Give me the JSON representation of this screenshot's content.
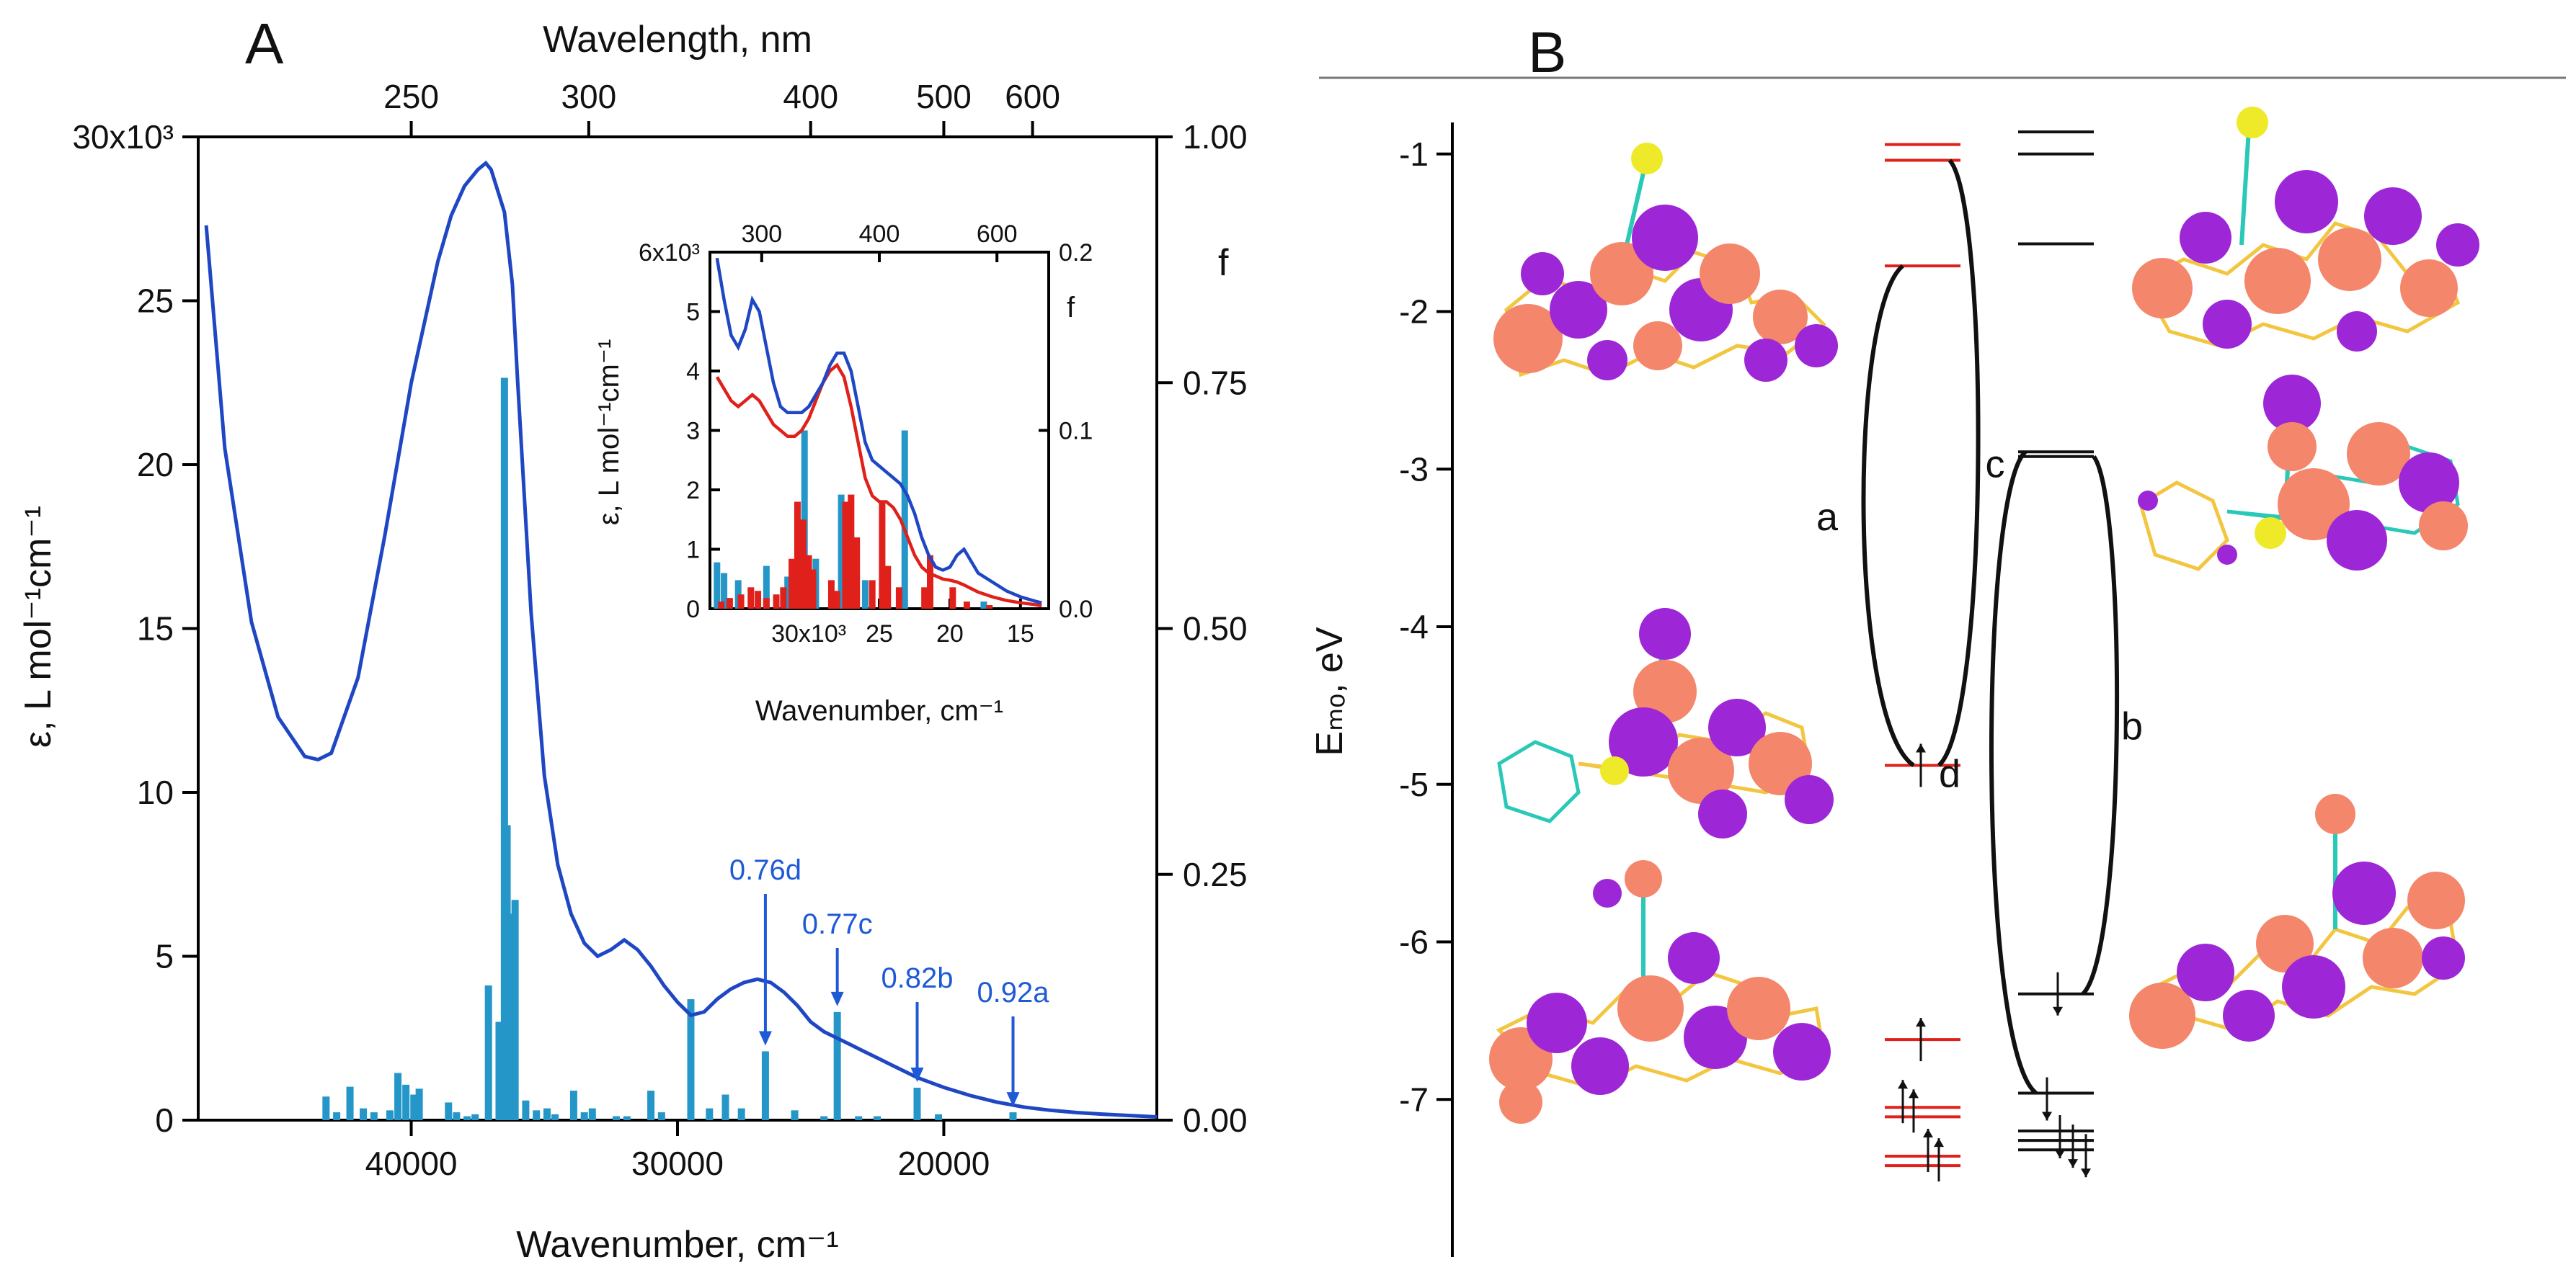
{
  "panels": {
    "a": "A",
    "b": "B"
  },
  "chart_data": [
    {
      "type": "line",
      "panel": "A",
      "xlabel": "Wavenumber, cm⁻¹",
      "x2label": "Wavelength, nm",
      "ylabel": "ε, L mol⁻¹cm⁻¹",
      "y2label": "f",
      "xlim": [
        48000,
        12000
      ],
      "ylim": [
        0,
        30000
      ],
      "y2lim": [
        0,
        1
      ],
      "x_ticks": [
        40000,
        30000,
        20000
      ],
      "x_tick_labels": [
        "40000",
        "30000",
        "20000"
      ],
      "x2_ticks_nm": [
        250,
        300,
        400,
        500,
        600
      ],
      "y_ticks": [
        0,
        5000,
        10000,
        15000,
        20000,
        25000,
        30000
      ],
      "y_tick_labels": [
        "0",
        "5",
        "10",
        "15",
        "20",
        "25",
        "30x10³"
      ],
      "y2_ticks": [
        0,
        0.25,
        0.5,
        0.75,
        1.0
      ],
      "y2_tick_labels": [
        "0.00",
        "0.25",
        "0.50",
        "0.75",
        "1.00"
      ],
      "colors": {
        "spectrum": "#1f47c4",
        "sticks": "#2596c8",
        "annotation": "#1e5ad6"
      },
      "series": [
        {
          "kind": "curve",
          "x": [
            47700,
            47000,
            46000,
            45000,
            44000,
            43500,
            43000,
            42000,
            41000,
            40000,
            39000,
            38500,
            38000,
            37500,
            37200,
            37000,
            36500,
            36200,
            36000,
            35500,
            35000,
            34500,
            34000,
            33500,
            33000,
            32500,
            32000,
            31500,
            31000,
            30500,
            30000,
            29500,
            29000,
            28500,
            28000,
            27500,
            27000,
            26500,
            26000,
            25500,
            25000,
            24500,
            24000,
            23500,
            23000,
            22500,
            22000,
            21500,
            21000,
            20500,
            20000,
            19000,
            18000,
            17000,
            16000,
            15000,
            14000,
            13000,
            12000
          ],
          "y": [
            27300,
            20500,
            15200,
            12300,
            11100,
            11000,
            11200,
            13500,
            17800,
            22500,
            26200,
            27600,
            28500,
            29000,
            29200,
            29000,
            27700,
            25500,
            22500,
            15500,
            10500,
            7800,
            6300,
            5400,
            5000,
            5200,
            5500,
            5200,
            4700,
            4100,
            3600,
            3200,
            3300,
            3700,
            4000,
            4200,
            4300,
            4200,
            3900,
            3500,
            3000,
            2700,
            2500,
            2300,
            2100,
            1900,
            1700,
            1500,
            1300,
            1150,
            1000,
            750,
            550,
            400,
            300,
            230,
            180,
            140,
            100
          ]
        },
        {
          "kind": "sticks",
          "name": "f",
          "x": [
            43200,
            42800,
            42300,
            41800,
            41400,
            40800,
            40500,
            40200,
            39900,
            39700,
            38600,
            38300,
            37900,
            37600,
            37100,
            36700,
            36500,
            36400,
            36300,
            36100,
            35700,
            35300,
            34900,
            34600,
            33900,
            33500,
            33200,
            32300,
            31900,
            31000,
            30600,
            29500,
            28800,
            28200,
            27600,
            26700,
            25600,
            24500,
            24000,
            23200,
            22500,
            21000,
            20200,
            17400
          ],
          "y": [
            0.024,
            0.008,
            0.034,
            0.012,
            0.008,
            0.01,
            0.048,
            0.036,
            0.026,
            0.032,
            0.018,
            0.008,
            0.004,
            0.006,
            0.137,
            0.1,
            0.755,
            0.3,
            0.21,
            0.224,
            0.02,
            0.01,
            0.012,
            0.006,
            0.03,
            0.008,
            0.012,
            0.004,
            0.004,
            0.03,
            0.008,
            0.123,
            0.012,
            0.026,
            0.012,
            0.07,
            0.01,
            0.004,
            0.11,
            0.004,
            0.004,
            0.033,
            0.006,
            0.008
          ]
        }
      ],
      "annotations": [
        {
          "text": "0.76d",
          "x": 26700
        },
        {
          "text": "0.77c",
          "x": 24000
        },
        {
          "text": "0.82b",
          "x": 21000
        },
        {
          "text": "0.92a",
          "x": 17400
        }
      ]
    },
    {
      "type": "line",
      "panel": "A-inset",
      "xlabel": "Wavenumber, cm⁻¹",
      "ylabel": "ε, L mol⁻¹cm⁻¹",
      "y2label": "f",
      "xlim": [
        37000,
        13000
      ],
      "ylim": [
        0,
        6000
      ],
      "y2lim": [
        0,
        0.2
      ],
      "x_ticks": [
        30000,
        25000,
        20000,
        15000
      ],
      "x_tick_labels": [
        "30x10³",
        "25",
        "20",
        "15"
      ],
      "x2_ticks_nm": [
        300,
        400,
        600
      ],
      "y_ticks": [
        0,
        1000,
        2000,
        3000,
        4000,
        5000,
        6000
      ],
      "y_tick_labels": [
        "0",
        "1",
        "2",
        "3",
        "4",
        "5",
        "6x10³"
      ],
      "y2_ticks": [
        0,
        0.1,
        0.2
      ],
      "y2_tick_labels": [
        "0.0",
        "0.1",
        "0.2"
      ],
      "colors": {
        "blue": "#1f47c4",
        "red": "#e0201a",
        "blue_sticks": "#2596c8",
        "red_sticks": "#e0201a"
      },
      "series": [
        {
          "kind": "curve",
          "color": "blue",
          "x": [
            36500,
            36000,
            35500,
            35000,
            34500,
            34000,
            33500,
            33000,
            32500,
            32000,
            31500,
            31000,
            30500,
            30000,
            29500,
            29000,
            28500,
            28000,
            27500,
            27000,
            26500,
            26000,
            25500,
            25000,
            24500,
            24000,
            23500,
            23000,
            22500,
            22000,
            21500,
            21000,
            20500,
            20000,
            19500,
            19000,
            18500,
            18000,
            17000,
            16000,
            15000,
            14000,
            13500
          ],
          "y": [
            5900,
            5200,
            4600,
            4400,
            4700,
            5200,
            5000,
            4400,
            3800,
            3400,
            3300,
            3300,
            3300,
            3400,
            3600,
            3800,
            4100,
            4300,
            4300,
            4000,
            3400,
            2800,
            2500,
            2400,
            2300,
            2200,
            2100,
            1900,
            1600,
            1200,
            900,
            700,
            650,
            700,
            900,
            1000,
            800,
            600,
            450,
            300,
            200,
            130,
            100
          ]
        },
        {
          "kind": "curve",
          "color": "red",
          "x": [
            36500,
            36000,
            35500,
            35000,
            34500,
            34000,
            33500,
            33000,
            32500,
            32000,
            31500,
            31000,
            30500,
            30000,
            29500,
            29000,
            28500,
            28000,
            27500,
            27000,
            26500,
            26000,
            25500,
            25000,
            24500,
            24000,
            23500,
            23000,
            22500,
            22000,
            21500,
            21000,
            20500,
            20000,
            19500,
            19000,
            18500,
            18000,
            17000,
            16000,
            15000,
            14000,
            13500
          ],
          "y": [
            3900,
            3700,
            3500,
            3400,
            3500,
            3600,
            3500,
            3300,
            3100,
            3000,
            2900,
            2900,
            3000,
            3200,
            3500,
            3800,
            4000,
            4100,
            3900,
            3400,
            2800,
            2200,
            1900,
            1800,
            1800,
            1700,
            1500,
            1200,
            900,
            700,
            600,
            550,
            500,
            480,
            450,
            400,
            340,
            280,
            200,
            140,
            100,
            70,
            50
          ]
        },
        {
          "kind": "sticks",
          "color": "blue_sticks",
          "x": [
            36500,
            36000,
            35000,
            33000,
            31500,
            30300,
            29500,
            27700,
            26000,
            23200,
            17600
          ],
          "y": [
            0.026,
            0.02,
            0.016,
            0.024,
            0.018,
            0.1,
            0.028,
            0.064,
            0.016,
            0.1,
            0.004
          ]
        },
        {
          "kind": "sticks",
          "color": "red_sticks",
          "x": [
            36200,
            35600,
            34800,
            34100,
            33600,
            33000,
            32300,
            31800,
            31200,
            30800,
            30400,
            30000,
            29700,
            28400,
            28000,
            27400,
            27000,
            26600,
            25500,
            24800,
            24400,
            23600,
            21800,
            21400,
            19800,
            18800,
            17200
          ],
          "y": [
            0.004,
            0.006,
            0.008,
            0.012,
            0.01,
            0.006,
            0.008,
            0.012,
            0.028,
            0.06,
            0.05,
            0.03,
            0.022,
            0.016,
            0.01,
            0.06,
            0.064,
            0.04,
            0.016,
            0.06,
            0.024,
            0.012,
            0.012,
            0.03,
            0.012,
            0.004,
            0.002
          ]
        }
      ]
    },
    {
      "type": "scatter",
      "panel": "B",
      "kind": "energy-level-diagram",
      "ylabel": "Eₘₒ, eV",
      "ylim": [
        -8.0,
        -0.8
      ],
      "y_ticks": [
        -1,
        -2,
        -3,
        -4,
        -5,
        -6,
        -7
      ],
      "y_tick_labels": [
        "-1",
        "-2",
        "-3",
        "-4",
        "-5",
        "-6",
        "-7"
      ],
      "colors": {
        "red": "#e0201a",
        "black": "#111111",
        "lobe_pink": "#f4866b",
        "lobe_purple": "#9d27d6"
      },
      "red_levels": [
        -0.94,
        -1.04,
        -1.71,
        -4.88,
        -6.62,
        -7.05,
        -7.11,
        -7.36,
        -7.42
      ],
      "black_levels": [
        -0.86,
        -1.0,
        -1.57,
        -2.89,
        -2.92,
        -6.33,
        -6.96,
        -7.2,
        -7.26,
        -7.32
      ],
      "transitions": [
        {
          "label": "a",
          "from": -4.88,
          "to": -1.71
        },
        {
          "label": "b",
          "from": -6.33,
          "to": -2.92
        },
        {
          "label": "c",
          "from": -4.88,
          "to": -1.04
        },
        {
          "label": "d",
          "from": -6.96,
          "to": -2.89
        }
      ]
    }
  ]
}
